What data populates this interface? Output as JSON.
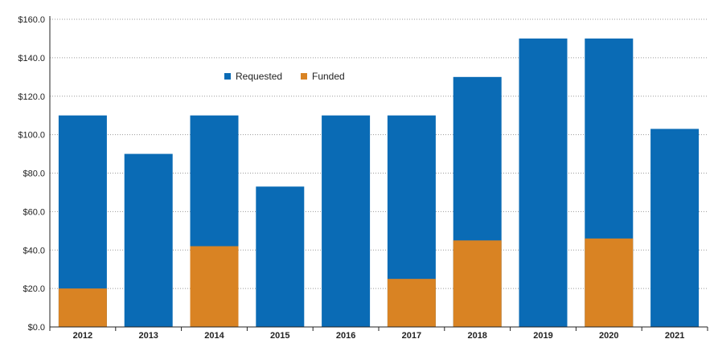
{
  "chart_data": {
    "type": "bar",
    "categories": [
      "2012",
      "2013",
      "2014",
      "2015",
      "2016",
      "2017",
      "2018",
      "2019",
      "2020",
      "2021"
    ],
    "series": [
      {
        "name": "Requested",
        "color": "#0a6bb5",
        "values": [
          110,
          90,
          110,
          73,
          110,
          110,
          130,
          150,
          150,
          103
        ]
      },
      {
        "name": "Funded",
        "color": "#d98323",
        "values": [
          20,
          0,
          42,
          0,
          0,
          25,
          45,
          0,
          46,
          0
        ]
      }
    ],
    "overlay": true,
    "ylim": [
      0,
      160
    ],
    "yticks": [
      0,
      20,
      40,
      60,
      80,
      100,
      120,
      140,
      160
    ],
    "ytick_labels": [
      "$0.0",
      "$20.0",
      "$40.0",
      "$60.0",
      "$80.0",
      "$100.0",
      "$120.0",
      "$140.0",
      "$160.0"
    ],
    "grid": true,
    "legend": "top-center",
    "title": "",
    "xlabel": "",
    "ylabel": ""
  }
}
